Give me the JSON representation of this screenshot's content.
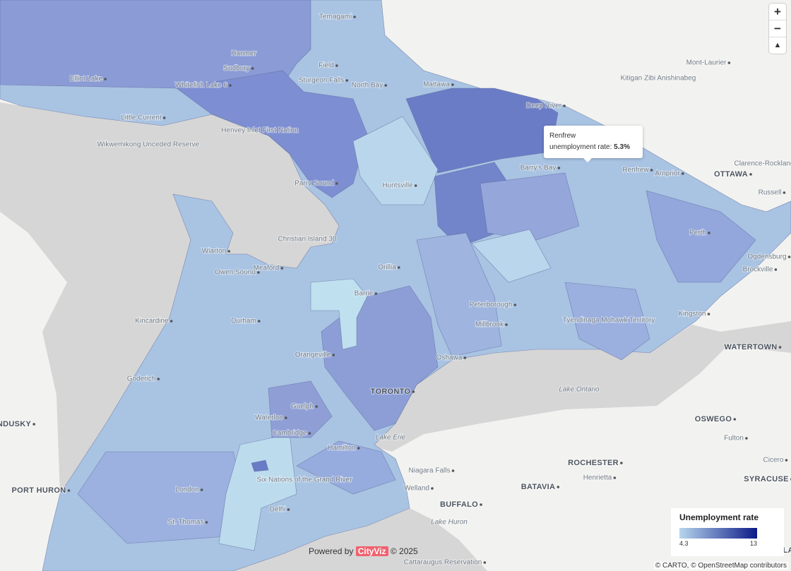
{
  "map": {
    "places": [
      "Temagami",
      "Hanmer",
      "Sudbury",
      "Field",
      "Sturgeon Falls",
      "North Bay",
      "Mattawa",
      "Elliot Lake",
      "Whitefish Lake 6",
      "Little Current",
      "Wikwemikong Unceded Reserve",
      "Henvey Inlet First Nation",
      "Deep River",
      "Kitigan Zibi Anishinabeg",
      "Mont-Laurier",
      "Barry's Bay",
      "Renfrew",
      "Arnprior",
      "OTTAWA",
      "Clarence-Rockland",
      "Russell",
      "Parry Sound",
      "Huntsville",
      "Christian Island 30",
      "Wiarton",
      "Owen Sound",
      "Meaford",
      "Orillia",
      "Barrie",
      "Perth",
      "Ogdensburg",
      "Brockville",
      "Peterborough",
      "Millbrook",
      "Tyendinaga Mohawk Territory",
      "Kingston",
      "WATERTOWN",
      "Kincardine",
      "Durham",
      "Orangeville",
      "Oshawa",
      "Goderich",
      "TORONTO",
      "Guelph",
      "Waterloo",
      "Cambridge",
      "Hamilton",
      "OSWEGO",
      "Fulton",
      "NDUSKY",
      "Niagara Falls",
      "Welland",
      "ROCHESTER",
      "Henrietta",
      "BATAVIA",
      "BUFFALO",
      "Cicero",
      "SYRACUSE",
      "PORT HURON",
      "London",
      "Six Nations of the Grand River",
      "Delhi",
      "St. Thomas",
      "Cattaraugus Reservation",
      "CORTLA",
      "Lake Ontario",
      "Lake Erie",
      "Lake Huron"
    ]
  },
  "tooltip": {
    "title": "Renfrew",
    "label": "unemployment rate:",
    "value": "5.3%"
  },
  "legend": {
    "title": "Unemployment rate",
    "min": 4.3,
    "max": 13,
    "colors": [
      "#b7d6ee",
      "#0b1a88"
    ]
  },
  "controls": {
    "zoom_in": "+",
    "zoom_out": "−",
    "compass": "▲"
  },
  "credit": {
    "powered_by": "Powered by",
    "brand": "CityViz",
    "year": "© 2025"
  },
  "attribution": "© CARTO, © OpenStreetMap contributors"
}
